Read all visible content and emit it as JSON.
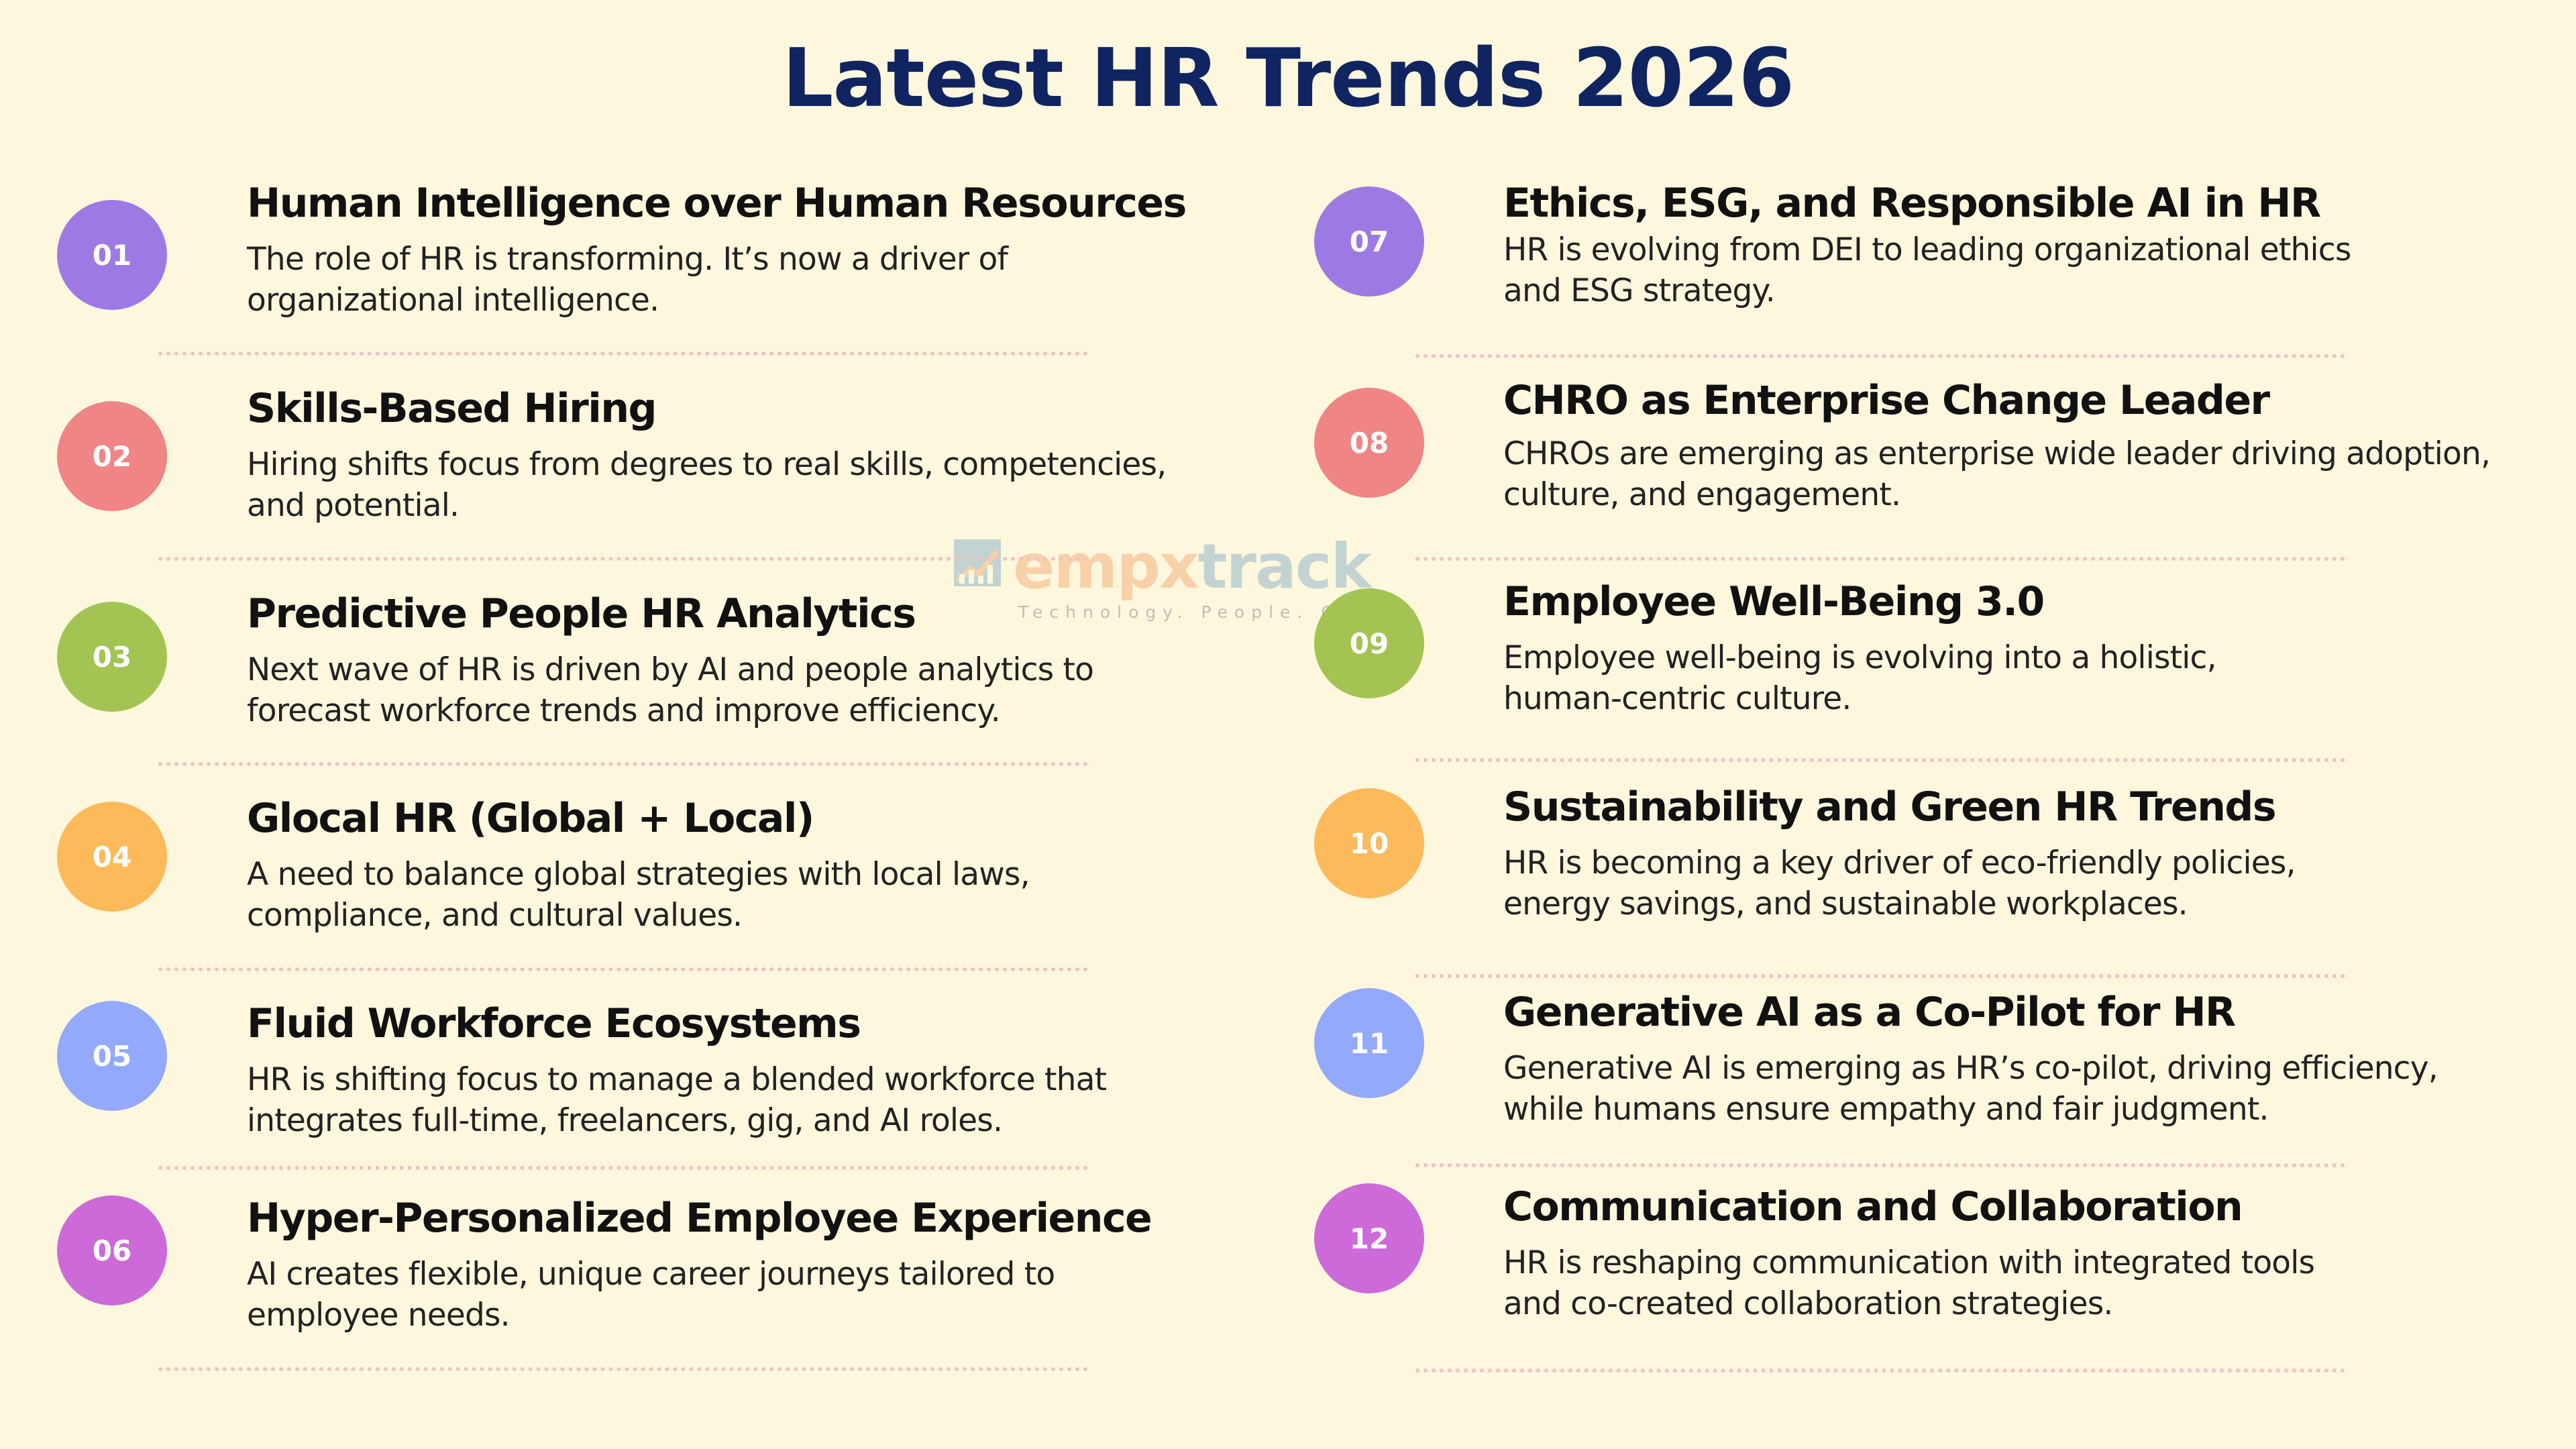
{
  "page": {
    "title": "Latest HR Trends 2026"
  },
  "watermark": {
    "brand_part_a": "empx",
    "brand_part_b": "track",
    "tagline": "Technology. People. Growth"
  },
  "colors": {
    "background": "#fdf7de",
    "title": "#0f2460",
    "divider": "#f0c2c2",
    "purple": "#9d7ae3",
    "coral": "#ef8585",
    "green": "#a3c452",
    "orange": "#fdba5a",
    "blue": "#93a9fb",
    "magenta": "#cb6ad8"
  },
  "trends": [
    {
      "number": "01",
      "color": "#9d7ae3",
      "heading": "Human Intelligence over Human Resources",
      "description": "The role of HR is transforming. It’s now a driver of organizational intelligence."
    },
    {
      "number": "02",
      "color": "#ef8585",
      "heading": "Skills-Based Hiring",
      "description": "Hiring shifts focus from degrees to real skills, competencies, and potential."
    },
    {
      "number": "03",
      "color": "#a3c452",
      "heading": "Predictive People HR Analytics",
      "description": "Next wave of HR is driven by AI and people analytics to forecast workforce trends and improve efficiency."
    },
    {
      "number": "04",
      "color": "#fdba5a",
      "heading": "Glocal HR (Global + Local)",
      "description": "A need to balance global strategies with local laws, compliance, and cultural values."
    },
    {
      "number": "05",
      "color": "#93a9fb",
      "heading": "Fluid Workforce Ecosystems",
      "description": "HR is shifting focus to manage a blended workforce that integrates full-time, freelancers, gig, and AI roles."
    },
    {
      "number": "06",
      "color": "#cb6ad8",
      "heading": "Hyper-Personalized Employee Experience",
      "description": "AI creates flexible, unique career journeys tailored to employee needs."
    },
    {
      "number": "07",
      "color": "#9d7ae3",
      "heading": "Ethics, ESG, and Responsible AI in HR",
      "description": "HR is evolving from DEI to leading organizational ethics and ESG strategy."
    },
    {
      "number": "08",
      "color": "#ef8585",
      "heading": "CHRO as Enterprise Change Leader",
      "description": "CHROs are emerging as enterprise wide leader driving adoption, culture, and engagement."
    },
    {
      "number": "09",
      "color": "#a3c452",
      "heading": "Employee Well-Being 3.0",
      "description": "Employee well-being is evolving into a holistic, human-centric culture."
    },
    {
      "number": "10",
      "color": "#fdba5a",
      "heading": "Sustainability and Green HR Trends",
      "description": "HR is becoming a key driver of eco-friendly policies, energy savings, and sustainable workplaces."
    },
    {
      "number": "11",
      "color": "#93a9fb",
      "heading": "Generative AI as a Co-Pilot for HR",
      "description": "Generative AI is emerging as HR’s co-pilot, driving efficiency, while humans ensure empathy and fair judgment."
    },
    {
      "number": "12",
      "color": "#cb6ad8",
      "heading": "Communication and Collaboration",
      "description": "HR is reshaping communication with integrated tools and co-created collaboration strategies."
    }
  ]
}
